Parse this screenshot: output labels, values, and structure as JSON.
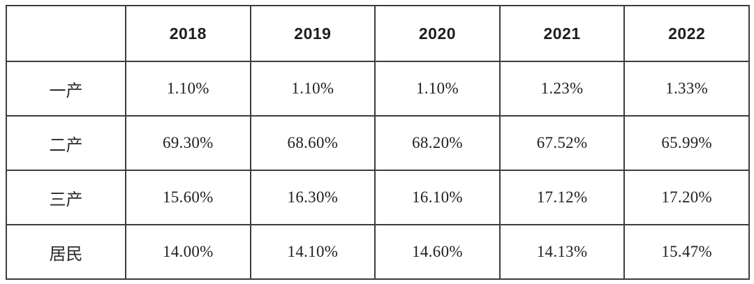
{
  "colors": {
    "border": "#3d3d3d",
    "text": "#1f1f1f",
    "background": "#ffffff"
  },
  "table": {
    "columns": [
      "",
      "2018",
      "2019",
      "2020",
      "2021",
      "2022"
    ],
    "rows": [
      {
        "label": "一产",
        "values": [
          "1.10%",
          "1.10%",
          "1.10%",
          "1.23%",
          "1.33%"
        ]
      },
      {
        "label": "二产",
        "values": [
          "69.30%",
          "68.60%",
          "68.20%",
          "67.52%",
          "65.99%"
        ]
      },
      {
        "label": "三产",
        "values": [
          "15.60%",
          "16.30%",
          "16.10%",
          "17.12%",
          "17.20%"
        ]
      },
      {
        "label": "居民",
        "values": [
          "14.00%",
          "14.10%",
          "14.60%",
          "14.13%",
          "15.47%"
        ]
      }
    ]
  },
  "chart_data": {
    "type": "table",
    "categories": [
      "2018",
      "2019",
      "2020",
      "2021",
      "2022"
    ],
    "series": [
      {
        "name": "一产",
        "values": [
          1.1,
          1.1,
          1.1,
          1.23,
          1.33
        ]
      },
      {
        "name": "二产",
        "values": [
          69.3,
          68.6,
          68.2,
          67.52,
          65.99
        ]
      },
      {
        "name": "三产",
        "values": [
          15.6,
          16.3,
          16.1,
          17.12,
          17.2
        ]
      },
      {
        "name": "居民",
        "values": [
          14.0,
          14.1,
          14.6,
          14.13,
          15.47
        ]
      }
    ],
    "unit": "%",
    "title": "",
    "xlabel": "",
    "ylabel": ""
  }
}
